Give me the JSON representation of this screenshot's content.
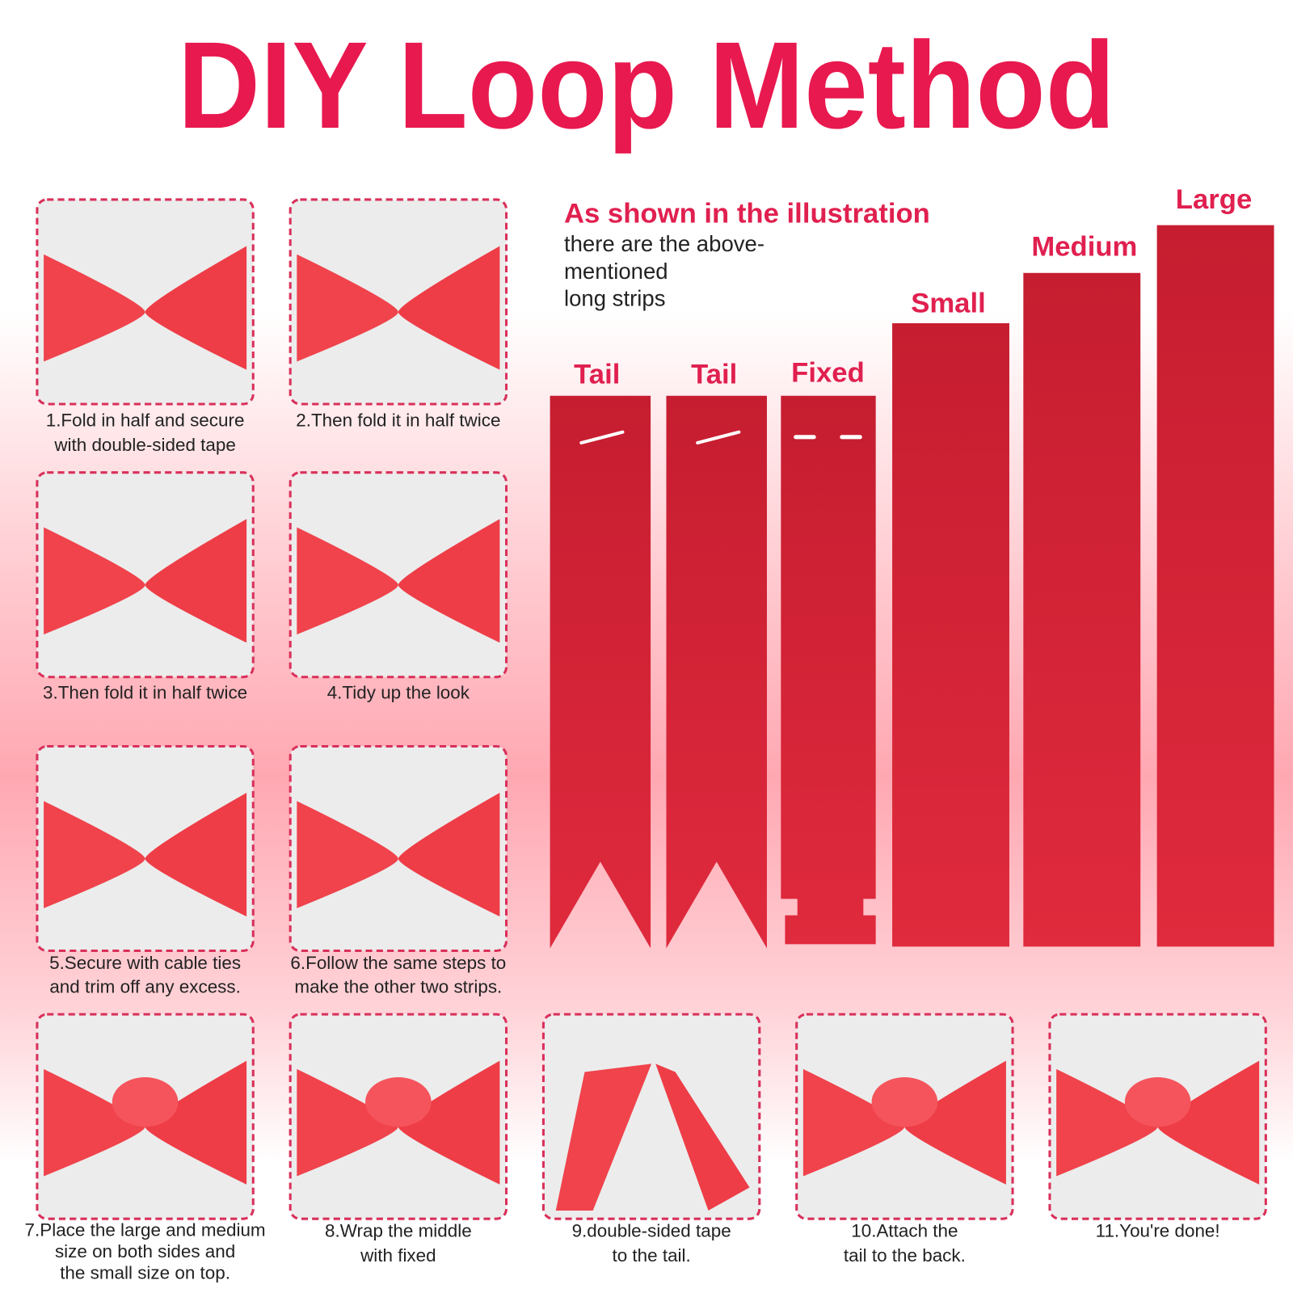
{
  "title": "DIY Loop Method",
  "intro": {
    "heading": "As shown in the illustration",
    "lines": [
      "there are the above-",
      "mentioned",
      "long strips"
    ]
  },
  "strips": [
    {
      "label": "Tail"
    },
    {
      "label": "Tail"
    },
    {
      "label": "Fixed"
    },
    {
      "label": "Small"
    },
    {
      "label": "Medium"
    },
    {
      "label": "Large"
    }
  ],
  "steps": [
    {
      "caption": [
        "1.Fold in half and secure",
        "with double-sided tape"
      ]
    },
    {
      "caption": [
        "2.Then fold it in half twice"
      ]
    },
    {
      "caption": [
        "3.Then fold it in half twice"
      ]
    },
    {
      "caption": [
        "4.Tidy up the look"
      ]
    },
    {
      "caption": [
        "5.Secure with cable ties",
        "and trim off any excess."
      ]
    },
    {
      "caption": [
        "6.Follow the same steps to",
        "make the other two strips."
      ]
    },
    {
      "caption": [
        "7.Place the large and medium",
        "size on both sides and",
        "the small size on top."
      ]
    },
    {
      "caption": [
        "8.Wrap the middle",
        "with fixed"
      ]
    },
    {
      "caption": [
        "9.double-sided tape",
        "to the tail."
      ]
    },
    {
      "caption": [
        "10.Attach the",
        "tail to the back."
      ]
    },
    {
      "caption": [
        "11.You're done!"
      ]
    }
  ]
}
